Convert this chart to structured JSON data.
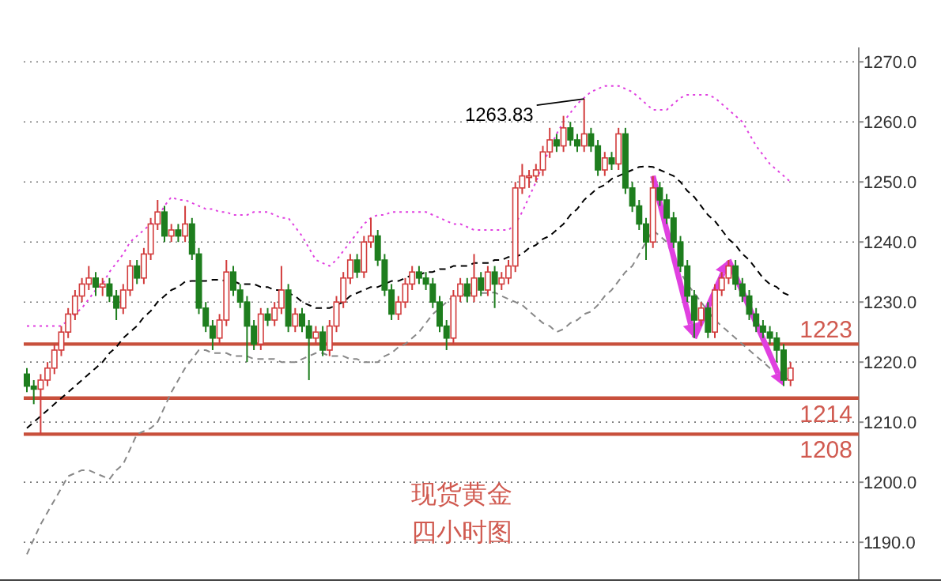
{
  "chart_data": {
    "type": "candlestick",
    "categories": [
      null,
      null,
      null,
      null,
      null,
      null,
      null,
      null,
      null,
      null,
      null,
      null,
      null,
      null,
      null,
      null,
      null,
      null,
      null,
      null,
      null,
      null,
      null,
      null,
      null,
      null,
      null,
      null,
      null,
      null,
      null,
      null,
      null,
      null,
      null,
      null,
      null,
      null,
      null,
      null,
      null,
      null,
      null,
      null,
      null,
      null,
      null,
      null,
      null,
      null,
      null,
      null,
      null,
      null,
      null,
      null,
      null,
      null,
      null,
      null,
      null,
      null,
      null,
      null,
      null,
      null,
      null,
      null,
      null,
      null,
      null,
      null,
      null,
      null,
      null,
      null,
      null,
      null,
      null,
      null,
      null,
      null,
      null,
      null,
      null,
      null,
      null,
      null,
      null,
      null,
      null,
      null,
      null,
      null,
      null,
      null,
      null,
      null,
      null,
      null,
      null,
      null,
      null,
      null,
      null,
      null,
      null,
      null,
      null,
      null,
      null,
      null
    ],
    "ohlc": [
      [
        1218,
        1219,
        1215,
        1216
      ],
      [
        1216,
        1217,
        1213,
        1215.5
      ],
      [
        1215.5,
        1218,
        1208,
        1217
      ],
      [
        1217,
        1220,
        1216,
        1219
      ],
      [
        1219,
        1223,
        1218,
        1222
      ],
      [
        1222,
        1226,
        1221,
        1225
      ],
      [
        1225,
        1229,
        1224,
        1228
      ],
      [
        1228,
        1232,
        1227,
        1231
      ],
      [
        1231,
        1234,
        1230,
        1233
      ],
      [
        1233,
        1236,
        1232,
        1234
      ],
      [
        1234,
        1235,
        1231,
        1232.5
      ],
      [
        1232.5,
        1234,
        1231,
        1233
      ],
      [
        1233,
        1234,
        1230,
        1231
      ],
      [
        1231,
        1232,
        1227,
        1229
      ],
      [
        1229,
        1233,
        1228,
        1232
      ],
      [
        1232,
        1237,
        1231,
        1236
      ],
      [
        1236,
        1237,
        1233,
        1234
      ],
      [
        1234,
        1239,
        1233,
        1238
      ],
      [
        1238,
        1244,
        1237,
        1243
      ],
      [
        1243,
        1247,
        1242,
        1245
      ],
      [
        1245,
        1246,
        1240,
        1241
      ],
      [
        1241,
        1243,
        1240,
        1242
      ],
      [
        1242,
        1243,
        1240,
        1241
      ],
      [
        1241,
        1246,
        1240,
        1243
      ],
      [
        1243,
        1244,
        1237,
        1238
      ],
      [
        1238,
        1239,
        1228,
        1229
      ],
      [
        1229,
        1230,
        1225,
        1226
      ],
      [
        1226,
        1227,
        1222,
        1224
      ],
      [
        1224,
        1228,
        1223,
        1227
      ],
      [
        1227,
        1237,
        1226,
        1235
      ],
      [
        1235,
        1236,
        1231,
        1232
      ],
      [
        1232,
        1233,
        1229,
        1230
      ],
      [
        1230,
        1231,
        1220,
        1226
      ],
      [
        1226,
        1227,
        1222,
        1223
      ],
      [
        1223,
        1229,
        1222,
        1228
      ],
      [
        1228,
        1229,
        1226,
        1227
      ],
      [
        1227,
        1230,
        1226,
        1229
      ],
      [
        1229,
        1236,
        1228,
        1232
      ],
      [
        1232,
        1233,
        1225,
        1226
      ],
      [
        1226,
        1229,
        1225,
        1228
      ],
      [
        1228,
        1229,
        1225,
        1226
      ],
      [
        1226,
        1227,
        1217,
        1224
      ],
      [
        1224,
        1226,
        1223,
        1225
      ],
      [
        1225,
        1226,
        1221,
        1222
      ],
      [
        1222,
        1227,
        1221,
        1226
      ],
      [
        1226,
        1231,
        1225,
        1230
      ],
      [
        1230,
        1235,
        1229,
        1234
      ],
      [
        1234,
        1238,
        1233,
        1237
      ],
      [
        1237,
        1238,
        1234,
        1235
      ],
      [
        1235,
        1241,
        1234,
        1240
      ],
      [
        1240,
        1244,
        1239,
        1241
      ],
      [
        1241,
        1242,
        1236,
        1237
      ],
      [
        1237,
        1238,
        1231,
        1232
      ],
      [
        1232,
        1233,
        1227,
        1228
      ],
      [
        1228,
        1231,
        1227,
        1230
      ],
      [
        1230,
        1234,
        1229,
        1233
      ],
      [
        1233,
        1236,
        1232,
        1235
      ],
      [
        1235,
        1236,
        1233,
        1234
      ],
      [
        1234,
        1235,
        1232,
        1233
      ],
      [
        1233,
        1234,
        1229,
        1230
      ],
      [
        1230,
        1231,
        1225,
        1226
      ],
      [
        1226,
        1227,
        1222,
        1224
      ],
      [
        1224,
        1232,
        1223,
        1231
      ],
      [
        1231,
        1234,
        1230,
        1233
      ],
      [
        1233,
        1234,
        1230,
        1231
      ],
      [
        1231,
        1238,
        1230,
        1234
      ],
      [
        1234,
        1235,
        1231,
        1232
      ],
      [
        1232,
        1236,
        1231,
        1235
      ],
      [
        1235,
        1236,
        1229,
        1233
      ],
      [
        1233,
        1235,
        1232,
        1234
      ],
      [
        1234,
        1237,
        1233,
        1236
      ],
      [
        1236,
        1250,
        1235,
        1249
      ],
      [
        1249,
        1253,
        1248,
        1251
      ],
      [
        1251,
        1252,
        1249,
        1251
      ],
      [
        1251,
        1253,
        1250,
        1252
      ],
      [
        1252,
        1256,
        1251,
        1255
      ],
      [
        1255,
        1259,
        1254,
        1257
      ],
      [
        1257,
        1258,
        1255,
        1256
      ],
      [
        1256,
        1261,
        1255,
        1259
      ],
      [
        1259,
        1260,
        1256,
        1257
      ],
      [
        1257,
        1258,
        1255,
        1256
      ],
      [
        1256,
        1263.83,
        1255,
        1258
      ],
      [
        1258,
        1259,
        1255,
        1256
      ],
      [
        1256,
        1257,
        1251,
        1252
      ],
      [
        1252,
        1255,
        1251,
        1254
      ],
      [
        1254,
        1255,
        1252,
        1253
      ],
      [
        1253,
        1259,
        1252,
        1258
      ],
      [
        1258,
        1259,
        1248,
        1249
      ],
      [
        1249,
        1250,
        1245,
        1246
      ],
      [
        1246,
        1247,
        1242,
        1243
      ],
      [
        1243,
        1244,
        1237,
        1240
      ],
      [
        1240,
        1251,
        1239,
        1249
      ],
      [
        1249,
        1250,
        1246,
        1247
      ],
      [
        1247,
        1248,
        1243,
        1244
      ],
      [
        1244,
        1245,
        1239,
        1240
      ],
      [
        1240,
        1241,
        1235,
        1236
      ],
      [
        1236,
        1237,
        1230,
        1231
      ],
      [
        1231,
        1232,
        1224,
        1227
      ],
      [
        1227,
        1230,
        1226,
        1229
      ],
      [
        1229,
        1230,
        1224,
        1225
      ],
      [
        1225,
        1233,
        1224,
        1232
      ],
      [
        1232,
        1235,
        1231,
        1234
      ],
      [
        1234,
        1237,
        1233,
        1236
      ],
      [
        1236,
        1237,
        1232,
        1233
      ],
      [
        1233,
        1234,
        1230,
        1231
      ],
      [
        1231,
        1232,
        1227,
        1228
      ],
      [
        1228,
        1229,
        1225,
        1226
      ],
      [
        1226,
        1227,
        1224,
        1225
      ],
      [
        1225,
        1226,
        1223,
        1224
      ],
      [
        1224,
        1225,
        1220,
        1222
      ],
      [
        1222,
        1223,
        1216,
        1217
      ],
      [
        1217,
        1220,
        1216,
        1219
      ]
    ],
    "colors": [
      "#1e7e1e",
      "#1e7e1e",
      "#d23c3c",
      "#d23c3c",
      "#d23c3c",
      "#d23c3c",
      "#d23c3c",
      "#d23c3c",
      "#d23c3c",
      "#d23c3c",
      "#1e7e1e",
      "#d23c3c",
      "#1e7e1e",
      "#1e7e1e",
      "#d23c3c",
      "#d23c3c",
      "#1e7e1e",
      "#d23c3c",
      "#d23c3c",
      "#d23c3c",
      "#1e7e1e",
      "#d23c3c",
      "#1e7e1e",
      "#d23c3c",
      "#1e7e1e",
      "#1e7e1e",
      "#1e7e1e",
      "#1e7e1e",
      "#d23c3c",
      "#d23c3c",
      "#1e7e1e",
      "#1e7e1e",
      "#1e7e1e",
      "#1e7e1e",
      "#d23c3c",
      "#1e7e1e",
      "#d23c3c",
      "#d23c3c",
      "#1e7e1e",
      "#d23c3c",
      "#1e7e1e",
      "#1e7e1e",
      "#d23c3c",
      "#1e7e1e",
      "#d23c3c",
      "#d23c3c",
      "#d23c3c",
      "#d23c3c",
      "#1e7e1e",
      "#d23c3c",
      "#d23c3c",
      "#1e7e1e",
      "#1e7e1e",
      "#1e7e1e",
      "#d23c3c",
      "#d23c3c",
      "#d23c3c",
      "#1e7e1e",
      "#1e7e1e",
      "#1e7e1e",
      "#1e7e1e",
      "#1e7e1e",
      "#d23c3c",
      "#d23c3c",
      "#1e7e1e",
      "#d23c3c",
      "#1e7e1e",
      "#d23c3c",
      "#1e7e1e",
      "#d23c3c",
      "#d23c3c",
      "#d23c3c",
      "#d23c3c",
      "#d23c3c",
      "#d23c3c",
      "#d23c3c",
      "#d23c3c",
      "#1e7e1e",
      "#d23c3c",
      "#1e7e1e",
      "#1e7e1e",
      "#d23c3c",
      "#1e7e1e",
      "#1e7e1e",
      "#d23c3c",
      "#1e7e1e",
      "#d23c3c",
      "#1e7e1e",
      "#1e7e1e",
      "#1e7e1e",
      "#1e7e1e",
      "#d23c3c",
      "#1e7e1e",
      "#1e7e1e",
      "#1e7e1e",
      "#1e7e1e",
      "#1e7e1e",
      "#1e7e1e",
      "#d23c3c",
      "#1e7e1e",
      "#d23c3c",
      "#d23c3c",
      "#d23c3c",
      "#1e7e1e",
      "#1e7e1e",
      "#1e7e1e",
      "#1e7e1e",
      "#1e7e1e",
      "#1e7e1e",
      "#1e7e1e",
      "#1e7e1e",
      "#d23c3c"
    ],
    "series": [
      {
        "type": "line",
        "color": "#e040e0",
        "line_style": "dotted",
        "values": [
          1226,
          1226,
          1226,
          1226,
          1226,
          1226,
          1227,
          1228,
          1229,
          1230.5,
          1232,
          1233,
          1235,
          1236.5,
          1238,
          1240,
          1241,
          1242,
          1243,
          1244,
          1246,
          1247.5,
          1247,
          1247,
          1246.5,
          1246,
          1245.5,
          1245.5,
          1245,
          1245,
          1244.5,
          1244.5,
          1244.5,
          1245,
          1245,
          1245,
          1244.5,
          1244,
          1244,
          1242.5,
          1241,
          1239,
          1237,
          1236.5,
          1236,
          1237,
          1238.5,
          1240,
          1241.5,
          1243,
          1244,
          1244.5,
          1244.5,
          1245,
          1245,
          1245,
          1245,
          1245,
          1245,
          1244.5,
          1244,
          1243.5,
          1243,
          1243,
          1242.5,
          1242,
          1242,
          1242,
          1242,
          1242,
          1242,
          1243,
          1245,
          1247.5,
          1250,
          1253,
          1255.5,
          1258,
          1260,
          1261.5,
          1263,
          1264,
          1265,
          1265.5,
          1266,
          1266,
          1266,
          1265.5,
          1265,
          1264,
          1263,
          1262,
          1262,
          1262,
          1263,
          1264,
          1264.5,
          1264.5,
          1264.5,
          1264.5,
          1264,
          1263,
          1262,
          1261,
          1260,
          1258,
          1256,
          1254.5,
          1253,
          1252,
          1251,
          1250
        ]
      },
      {
        "type": "line",
        "color": "#000000",
        "line_style": "dashed",
        "values": [
          1209,
          1210,
          1211,
          1212,
          1213,
          1214,
          1215,
          1216,
          1217,
          1218,
          1219,
          1220,
          1221.5,
          1222.5,
          1224,
          1225,
          1226,
          1227.5,
          1228.5,
          1230,
          1231,
          1232,
          1232.5,
          1233.4,
          1233.5,
          1233.5,
          1233.5,
          1233.7,
          1233.7,
          1233.5,
          1233.5,
          1233,
          1233,
          1233,
          1232.5,
          1232.5,
          1232,
          1232,
          1231.5,
          1231,
          1230,
          1229.5,
          1229,
          1229,
          1229,
          1229.5,
          1230,
          1231,
          1231.5,
          1232,
          1232.5,
          1232.5,
          1233,
          1233.5,
          1233.5,
          1234,
          1234.5,
          1234.5,
          1235,
          1235,
          1235.5,
          1235.5,
          1236,
          1236,
          1236,
          1236.5,
          1236.5,
          1236.5,
          1237,
          1237,
          1237.5,
          1237.5,
          1238,
          1239,
          1239.5,
          1240.5,
          1241,
          1242,
          1243,
          1244.5,
          1245.5,
          1247,
          1248,
          1249,
          1249.5,
          1250.5,
          1251,
          1251.5,
          1252,
          1252.5,
          1252.6,
          1252.5,
          1252,
          1251.5,
          1251,
          1250,
          1248.5,
          1247.5,
          1246,
          1244.5,
          1243.5,
          1242,
          1240.5,
          1239.5,
          1238,
          1237,
          1235.5,
          1234,
          1233,
          1232.5,
          1231.5,
          1231
        ]
      },
      {
        "type": "line",
        "color": "#888888",
        "line_style": "dashed",
        "values": [
          1188,
          1190.5,
          1193,
          1195,
          1197,
          1199,
          1201,
          1201.5,
          1202,
          1202,
          1201.5,
          1201,
          1200.5,
          1202,
          1203,
          1205.5,
          1208,
          1208.5,
          1209,
          1210,
          1212.5,
          1215,
          1217,
          1219,
          1220.5,
          1222,
          1222,
          1221.5,
          1221.5,
          1221.5,
          1221,
          1221,
          1221,
          1220.5,
          1220.5,
          1220.5,
          1220.5,
          1220,
          1220,
          1220,
          1220.5,
          1221,
          1221.5,
          1221.5,
          1221,
          1221,
          1221,
          1220.5,
          1220.5,
          1220,
          1220,
          1220,
          1221,
          1221.5,
          1222.5,
          1223,
          1224,
          1225,
          1226.5,
          1228,
          1229,
          1230,
          1231,
          1231,
          1231.5,
          1231.5,
          1231.5,
          1231.5,
          1231.6,
          1231,
          1230.5,
          1230,
          1229.5,
          1228.5,
          1227.5,
          1226.5,
          1226,
          1225,
          1225.5,
          1226.5,
          1227,
          1228,
          1228.4,
          1229.5,
          1231,
          1232,
          1233.5,
          1235,
          1236,
          1238,
          1240,
          1242,
          1241,
          1240,
          1237.5,
          1235,
          1233,
          1231.5,
          1230,
          1228.5,
          1227,
          1226,
          1225,
          1224,
          1223,
          1222,
          1221,
          1220,
          1219,
          1218.5,
          1217.5,
          1217
        ]
      }
    ],
    "ylim": [
      1183.7,
      1272.4
    ],
    "yticks": [
      {
        "value": 1190,
        "label": "1190.0"
      },
      {
        "value": 1200,
        "label": "1200.0"
      },
      {
        "value": 1210,
        "label": "1210.0"
      },
      {
        "value": 1220,
        "label": "1220.0"
      },
      {
        "value": 1230,
        "label": "1230.0"
      },
      {
        "value": 1240,
        "label": "1240.0"
      },
      {
        "value": 1250,
        "label": "1250.0"
      },
      {
        "value": 1260,
        "label": "1260.0"
      },
      {
        "value": 1270,
        "label": "1270.0"
      }
    ],
    "grid": "y",
    "ref_lines": [
      {
        "axis": "y",
        "value": 1223,
        "label": "1223",
        "color": "#c8503c"
      },
      {
        "axis": "y",
        "value": 1214,
        "label": "1214",
        "color": "#c8503c"
      },
      {
        "axis": "y",
        "value": 1208,
        "label": "1208",
        "color": "#c8503c"
      }
    ],
    "annotations": [
      "1263.83",
      "现货黄金",
      "四小时图"
    ]
  }
}
